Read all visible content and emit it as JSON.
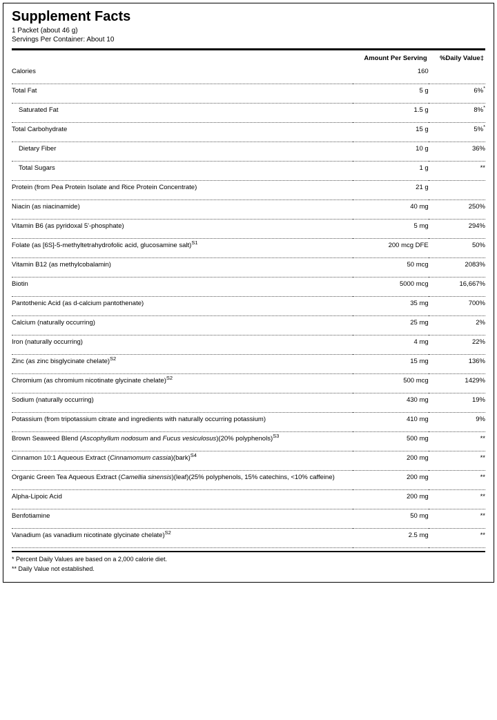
{
  "title": "Supplement Facts",
  "serving_size": "1 Packet (about 46 g)",
  "servings_per": "Servings Per Container: About 10",
  "headers": {
    "amount": "Amount Per Serving",
    "dv": "%Daily Value‡"
  },
  "rows": [
    {
      "name": "Calories",
      "amount": "160",
      "dv": "",
      "indent": 0
    },
    {
      "name": "Total Fat",
      "amount": "5 g",
      "dv": "6%",
      "dvSup": "*",
      "indent": 0
    },
    {
      "name": "Saturated Fat",
      "amount": "1.5 g",
      "dv": "8%",
      "dvSup": "*",
      "indent": 1
    },
    {
      "name": "Total Carbohydrate",
      "amount": "15 g",
      "dv": "5%",
      "dvSup": "*",
      "indent": 0
    },
    {
      "name": "Dietary Fiber",
      "amount": "10 g",
      "dv": "36%",
      "indent": 1
    },
    {
      "name": "Total Sugars",
      "amount": "1 g",
      "dv": "**",
      "indent": 1
    },
    {
      "name": "Protein (from Pea Protein Isolate and Rice Protein Concentrate)",
      "amount": "21 g",
      "dv": "",
      "indent": 0
    },
    {
      "name": "Niacin (as niacinamide)",
      "amount": "40 mg",
      "dv": "250%",
      "indent": 0
    },
    {
      "name": "Vitamin B6 (as pyridoxal 5'-phosphate)",
      "amount": "5 mg",
      "dv": "294%",
      "indent": 0
    },
    {
      "name": "Folate (as [6S]-5-methyltetrahydrofolic acid, glucosamine salt)<sup>S1</sup>",
      "amount": "200 mcg DFE",
      "dv": "50%",
      "indent": 0
    },
    {
      "name": "Vitamin B12 (as methylcobalamin)",
      "amount": "50 mcg",
      "dv": "2083%",
      "indent": 0
    },
    {
      "name": "Biotin",
      "amount": "5000 mcg",
      "dv": "16,667%",
      "indent": 0
    },
    {
      "name": "Pantothenic Acid (as d-calcium pantothenate)",
      "amount": "35 mg",
      "dv": "700%",
      "indent": 0
    },
    {
      "name": "Calcium (naturally occurring)",
      "amount": "25 mg",
      "dv": "2%",
      "indent": 0
    },
    {
      "name": "Iron (naturally occurring)",
      "amount": "4 mg",
      "dv": "22%",
      "indent": 0
    },
    {
      "name": "Zinc (as zinc bisglycinate chelate)<sup>S2</sup>",
      "amount": "15 mg",
      "dv": "136%",
      "indent": 0
    },
    {
      "name": "Chromium (as chromium nicotinate glycinate chelate)<sup>S2</sup>",
      "amount": "500 mcg",
      "dv": "1429%",
      "indent": 0
    },
    {
      "name": "Sodium (naturally occurring)",
      "amount": "430 mg",
      "dv": "19%",
      "indent": 0
    },
    {
      "name": "Potassium (from tripotassium citrate and ingredients with naturally occurring potassium)",
      "amount": "410 mg",
      "dv": "9%",
      "indent": 0
    },
    {
      "name": "Brown Seaweed Blend (<em>Ascophyllum nodosum</em> and <em>Fucus vesiculosus</em>)(20% polyphenols)<sup>S3</sup>",
      "amount": "500 mg",
      "dv": "**",
      "indent": 0
    },
    {
      "name": "Cinnamon 10:1 Aqueous Extract (<em>Cinnamomum cassia</em>)(bark)<sup>S4</sup>",
      "amount": "200 mg",
      "dv": "**",
      "indent": 0
    },
    {
      "name": "Organic Green Tea Aqueous Extract (<em>Camellia sinensis</em>)(leaf)(25% polyphenols, 15% catechins, <10% caffeine)",
      "amount": "200 mg",
      "dv": "**",
      "indent": 0
    },
    {
      "name": "Alpha-Lipoic Acid",
      "amount": "200 mg",
      "dv": "**",
      "indent": 0
    },
    {
      "name": "Benfotiamine",
      "amount": "50 mg",
      "dv": "**",
      "indent": 0
    },
    {
      "name": "Vanadium (as vanadium nicotinate glycinate chelate)<sup>S2</sup>",
      "amount": "2.5 mg",
      "dv": "**",
      "indent": 0
    }
  ],
  "footnotes": [
    "* Percent Daily Values are based on a 2,000 calorie diet.",
    "** Daily Value not established."
  ],
  "colors": {
    "text": "#000000",
    "border": "#000000",
    "dotted": "#555555",
    "background": "#ffffff"
  },
  "col_widths": {
    "name_pct": 72,
    "amount_pct": 16,
    "dv_pct": 12
  }
}
